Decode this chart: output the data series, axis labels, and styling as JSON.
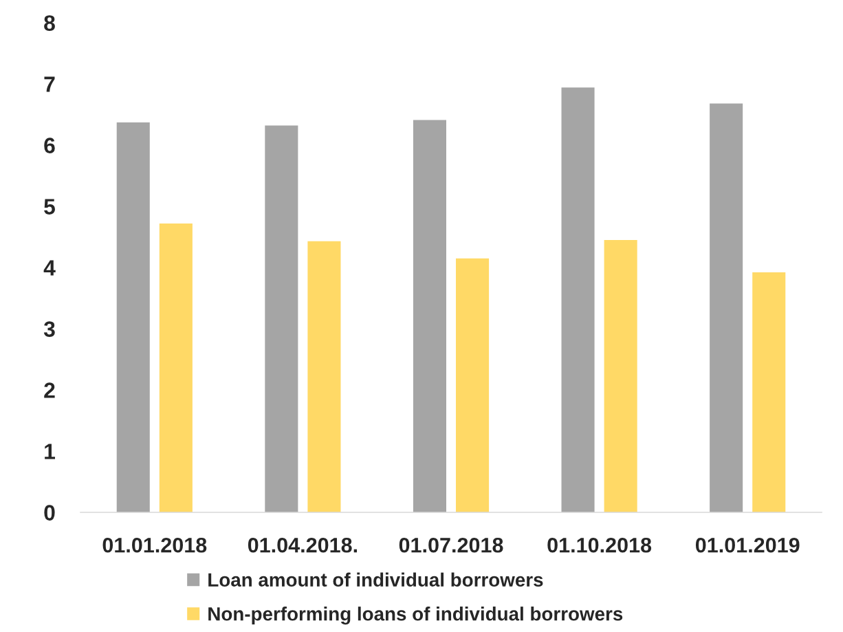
{
  "chart_data": {
    "type": "bar",
    "categories": [
      "01.01.2018",
      "01.04.2018.",
      "01.07.2018",
      "01.10.2018",
      "01.01.2019"
    ],
    "series": [
      {
        "name": "Loan amount of individual borrowers",
        "color": "#a5a5a5",
        "values": [
          6.37,
          6.32,
          6.41,
          6.94,
          6.68
        ]
      },
      {
        "name": "Non-performing loans of individual borrowers",
        "color": "#ffd966",
        "values": [
          4.72,
          4.43,
          4.15,
          4.45,
          3.92
        ]
      }
    ],
    "ylim": [
      0,
      8
    ],
    "yticks": [
      0,
      1,
      2,
      3,
      4,
      5,
      6,
      7,
      8
    ],
    "grid": false,
    "legend": "bottom"
  }
}
